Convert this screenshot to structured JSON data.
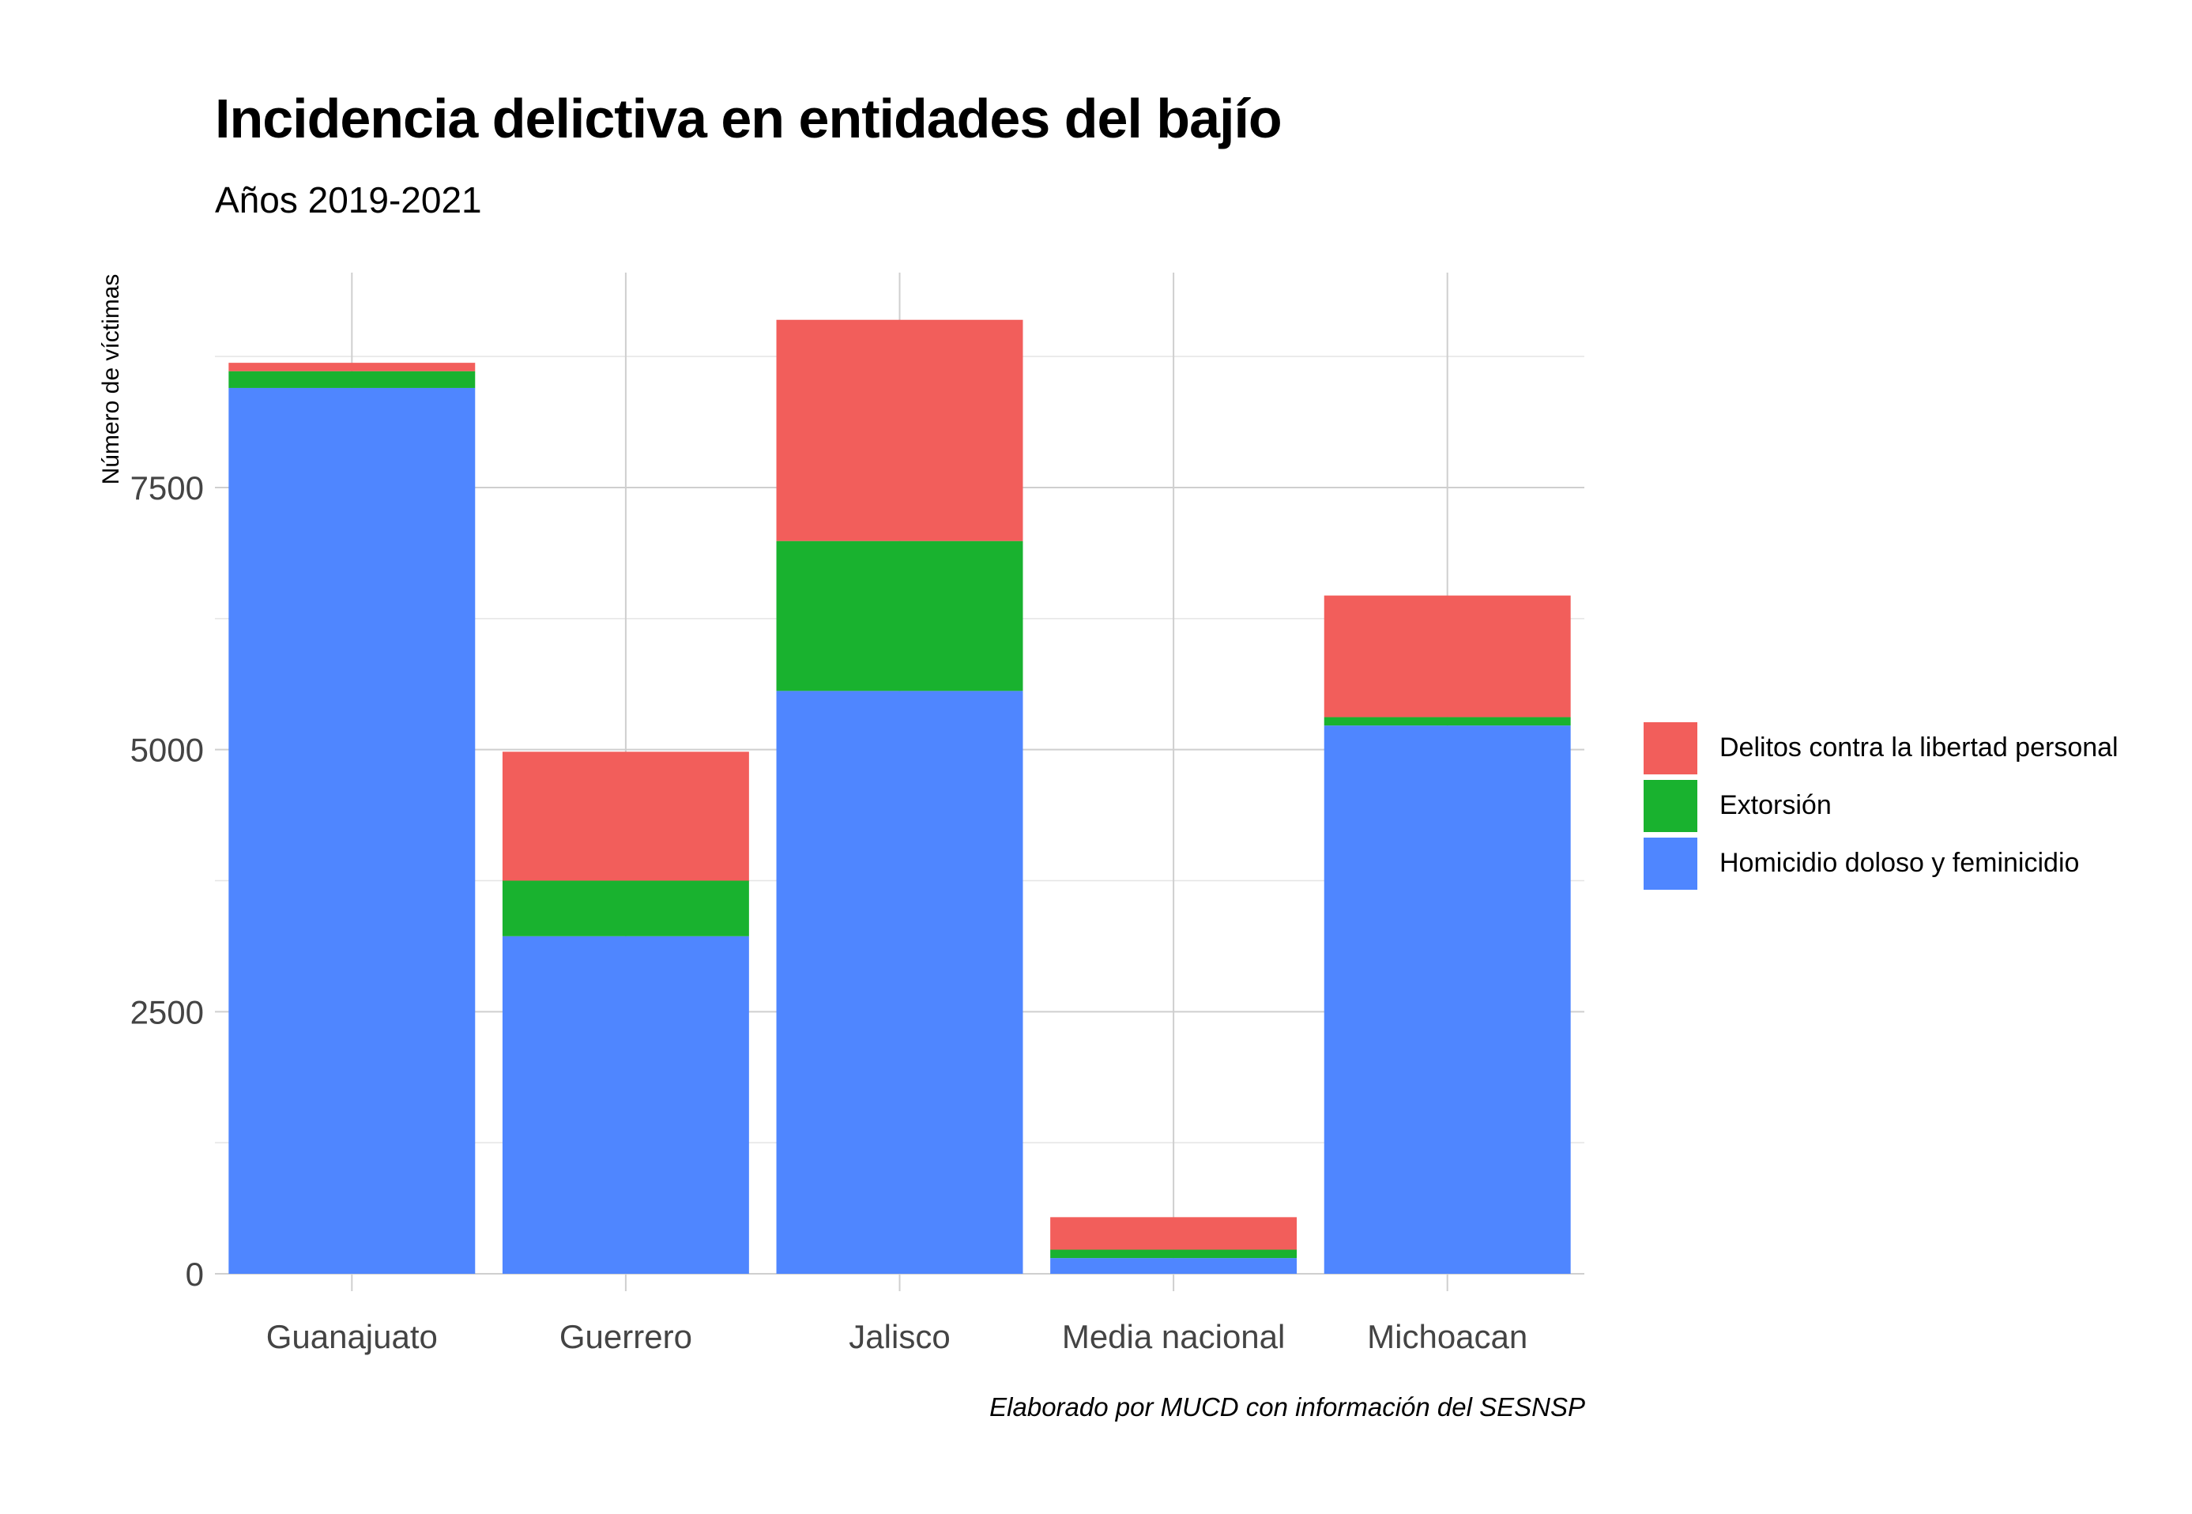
{
  "chart_data": {
    "type": "bar",
    "stacked": true,
    "title": "Incidencia delictiva en entidades del bajío",
    "subtitle": "Años 2019-2021",
    "caption": "Elaborado por MUCD con información del SESNSP",
    "xlabel": "",
    "ylabel": "Número de víctimas",
    "ylim": [
      0,
      9700
    ],
    "yticks": [
      0,
      2500,
      5000,
      7500
    ],
    "grid": true,
    "legend_position": "right",
    "categories": [
      "Guanajuato",
      "Guerrero",
      "Jalisco",
      "Media nacional",
      "Michoacan"
    ],
    "series": [
      {
        "name": "Homicidio doloso y feminicidio",
        "color": "#4F86FF",
        "values": [
          8450,
          3220,
          5560,
          150,
          5230
        ]
      },
      {
        "name": "Extorsión",
        "color": "#19B22F",
        "values": [
          160,
          530,
          1430,
          80,
          80
        ]
      },
      {
        "name": "Delitos contra la libertad personal",
        "color": "#F25E5B",
        "values": [
          80,
          1230,
          2110,
          310,
          1160
        ]
      }
    ],
    "legend_order": [
      2,
      1,
      0
    ]
  }
}
